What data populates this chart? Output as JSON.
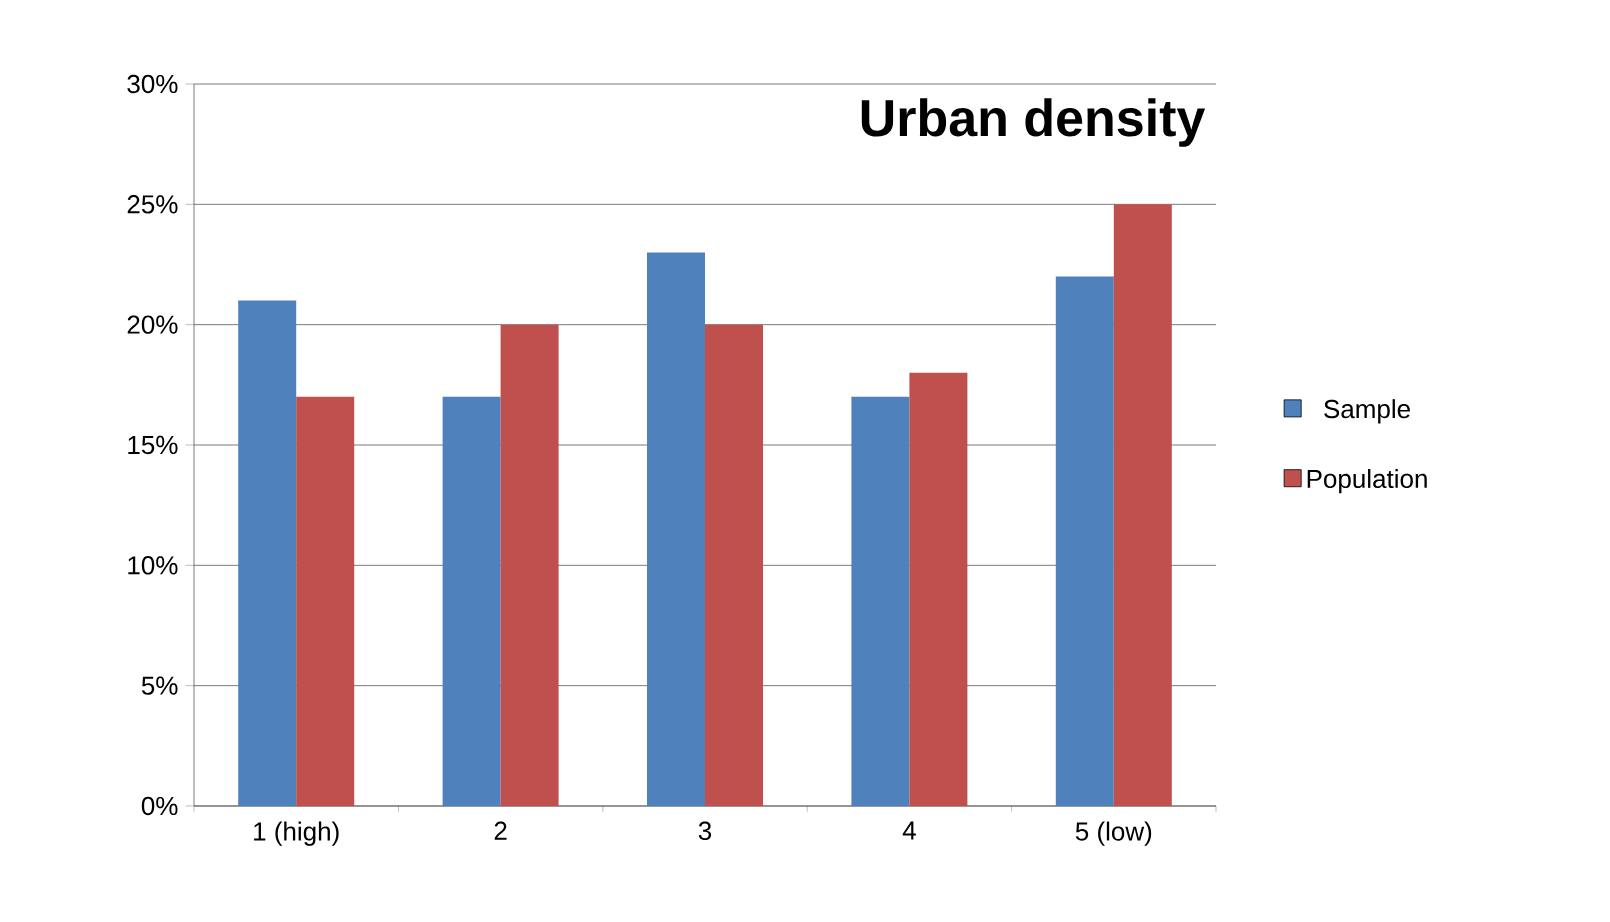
{
  "chart_data": {
    "type": "bar",
    "title": "Urban density",
    "categories": [
      "1 (high)",
      "2",
      "3",
      "4",
      "5 (low)"
    ],
    "series": [
      {
        "name": "Sample",
        "color": "#4f81bd",
        "values": [
          21,
          17,
          23,
          17,
          22
        ]
      },
      {
        "name": "Population",
        "color": "#c0504d",
        "values": [
          17,
          20,
          20,
          18,
          25
        ]
      }
    ],
    "ylim": [
      0,
      30
    ],
    "yticks": [
      {
        "value": 0,
        "label": "0%"
      },
      {
        "value": 5,
        "label": "5%"
      },
      {
        "value": 10,
        "label": "10%"
      },
      {
        "value": 15,
        "label": "15%"
      },
      {
        "value": 20,
        "label": "20%"
      },
      {
        "value": 25,
        "label": "25%"
      },
      {
        "value": 30,
        "label": "30%"
      }
    ],
    "grid": "y",
    "legend": "right"
  }
}
